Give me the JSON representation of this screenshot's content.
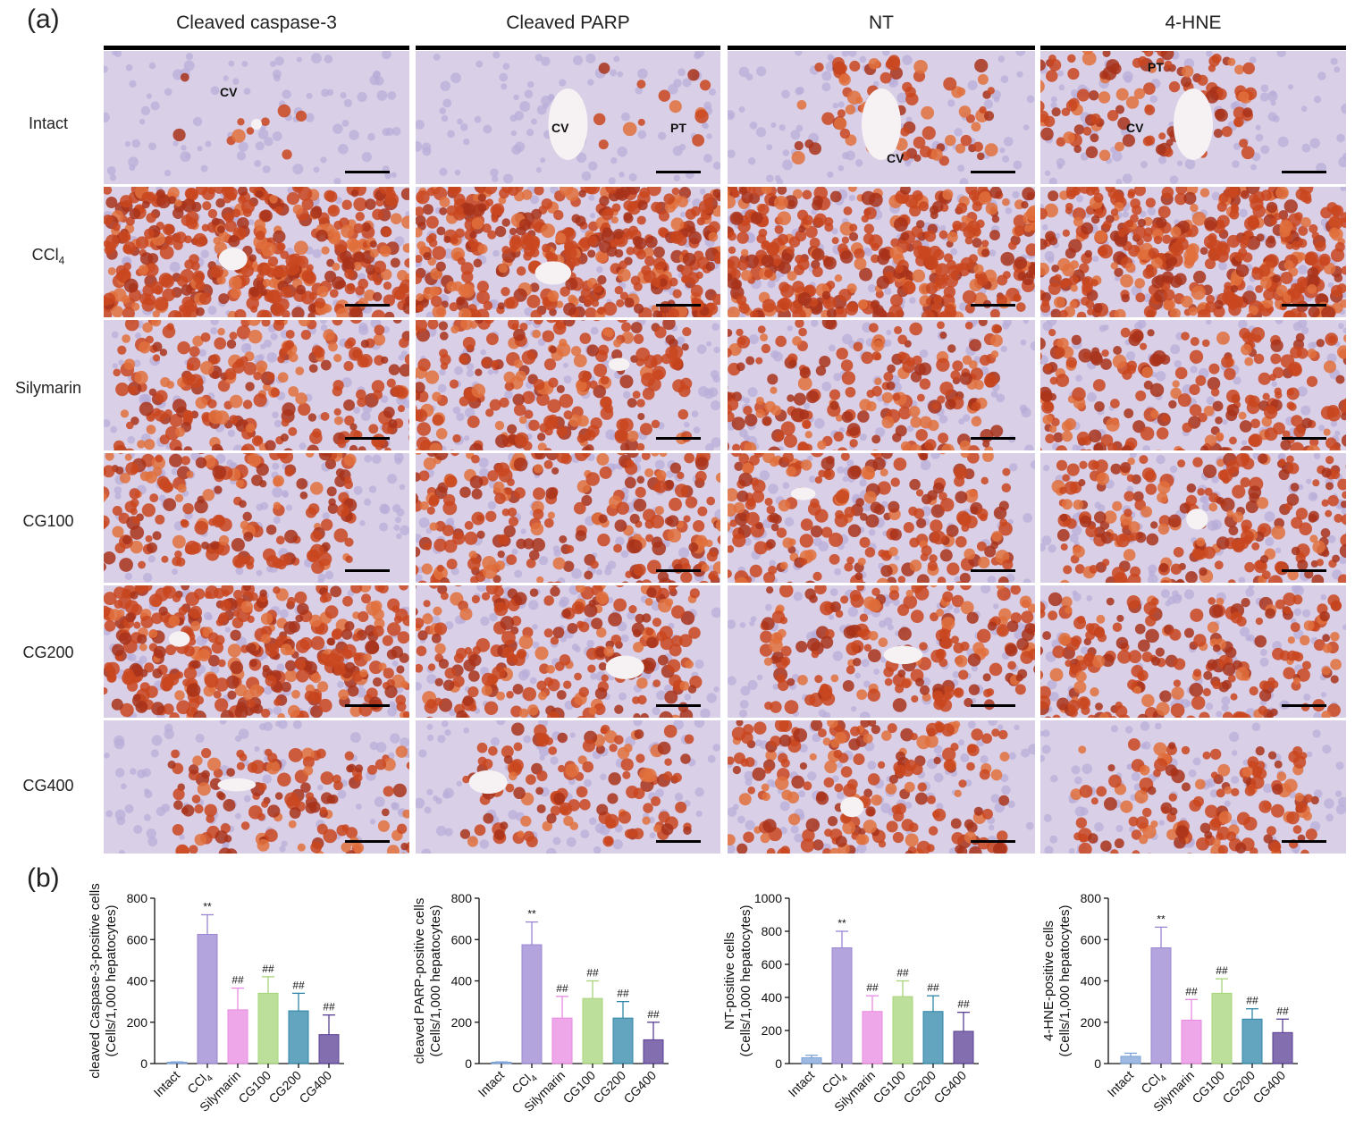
{
  "panel_a": {
    "label": "(a)",
    "columns": [
      "Cleaved caspase-3",
      "Cleaved PARP",
      "NT",
      "4-HNE"
    ],
    "rows": [
      {
        "label": "Intact",
        "intensity": [
          0.02,
          0.03,
          0.15,
          0.25
        ]
      },
      {
        "label": "CCl",
        "sub": "4",
        "intensity": [
          0.88,
          0.88,
          0.8,
          0.85
        ]
      },
      {
        "label": "Silymarin",
        "intensity": [
          0.6,
          0.55,
          0.5,
          0.55
        ]
      },
      {
        "label": "CG100",
        "intensity": [
          0.55,
          0.7,
          0.55,
          0.65
        ]
      },
      {
        "label": "CG200",
        "intensity": [
          0.75,
          0.65,
          0.45,
          0.55
        ]
      },
      {
        "label": "CG400",
        "intensity": [
          0.3,
          0.25,
          0.4,
          0.3
        ]
      }
    ],
    "annotations": [
      {
        "row": 0,
        "col": 0,
        "text": "CV"
      },
      {
        "row": 0,
        "col": 1,
        "text": "CV"
      },
      {
        "row": 0,
        "col": 1,
        "text": "PT"
      },
      {
        "row": 0,
        "col": 2,
        "text": "CV"
      },
      {
        "row": 0,
        "col": 3,
        "text": "PT"
      },
      {
        "row": 0,
        "col": 3,
        "text": "CV"
      }
    ]
  },
  "panel_b": {
    "label": "(b)",
    "categories": [
      "Intact",
      "CCl4",
      "Silymarin",
      "CG100",
      "CG200",
      "CG400"
    ],
    "bar_colors": [
      "#7ea3d8",
      "#9b86d2",
      "#e88ae2",
      "#a6d47a",
      "#2f86a8",
      "#5a3f95"
    ]
  },
  "chart_data": [
    {
      "type": "bar",
      "ylabel": "cleaved Caspase-3-positive cells",
      "ylabel2": "(Cells/1,000 hepatocytes)",
      "categories": [
        "Intact",
        "CCl4",
        "Silymarin",
        "CG100",
        "CG200",
        "CG400"
      ],
      "values": [
        5,
        625,
        260,
        340,
        255,
        140
      ],
      "errors": [
        3,
        95,
        105,
        80,
        85,
        95
      ],
      "significance": [
        "",
        "**",
        "##",
        "##",
        "##",
        "##"
      ],
      "ylim": [
        0,
        800
      ],
      "yticks": [
        0,
        200,
        400,
        600,
        800
      ]
    },
    {
      "type": "bar",
      "ylabel": "cleaved PARP-positive cells",
      "ylabel2": "(Cells/1,000 hepatocytes)",
      "categories": [
        "Intact",
        "CCl4",
        "Silymarin",
        "CG100",
        "CG200",
        "CG400"
      ],
      "values": [
        5,
        575,
        220,
        315,
        220,
        115
      ],
      "errors": [
        3,
        110,
        105,
        85,
        80,
        85
      ],
      "significance": [
        "",
        "**",
        "##",
        "##",
        "##",
        "##"
      ],
      "ylim": [
        0,
        800
      ],
      "yticks": [
        0,
        200,
        400,
        600,
        800
      ]
    },
    {
      "type": "bar",
      "ylabel": "NT-positive cells",
      "ylabel2": "(Cells/1,000 hepatocytes)",
      "categories": [
        "Intact",
        "CCl4",
        "Silymarin",
        "CG100",
        "CG200",
        "CG400"
      ],
      "values": [
        35,
        700,
        315,
        405,
        315,
        195
      ],
      "errors": [
        15,
        100,
        95,
        95,
        95,
        115
      ],
      "significance": [
        "",
        "**",
        "##",
        "##",
        "##",
        "##"
      ],
      "ylim": [
        0,
        1000
      ],
      "yticks": [
        0,
        200,
        400,
        600,
        800,
        1000
      ]
    },
    {
      "type": "bar",
      "ylabel": "4-HNE-positive cells",
      "ylabel2": "(Cells/1,000 hepatocytes)",
      "categories": [
        "Intact",
        "CCl4",
        "Silymarin",
        "CG100",
        "CG200",
        "CG400"
      ],
      "values": [
        35,
        560,
        210,
        340,
        215,
        150
      ],
      "errors": [
        15,
        100,
        100,
        70,
        50,
        65
      ],
      "significance": [
        "",
        "**",
        "##",
        "##",
        "##",
        "##"
      ],
      "ylim": [
        0,
        800
      ],
      "yticks": [
        0,
        200,
        400,
        600,
        800
      ]
    }
  ]
}
